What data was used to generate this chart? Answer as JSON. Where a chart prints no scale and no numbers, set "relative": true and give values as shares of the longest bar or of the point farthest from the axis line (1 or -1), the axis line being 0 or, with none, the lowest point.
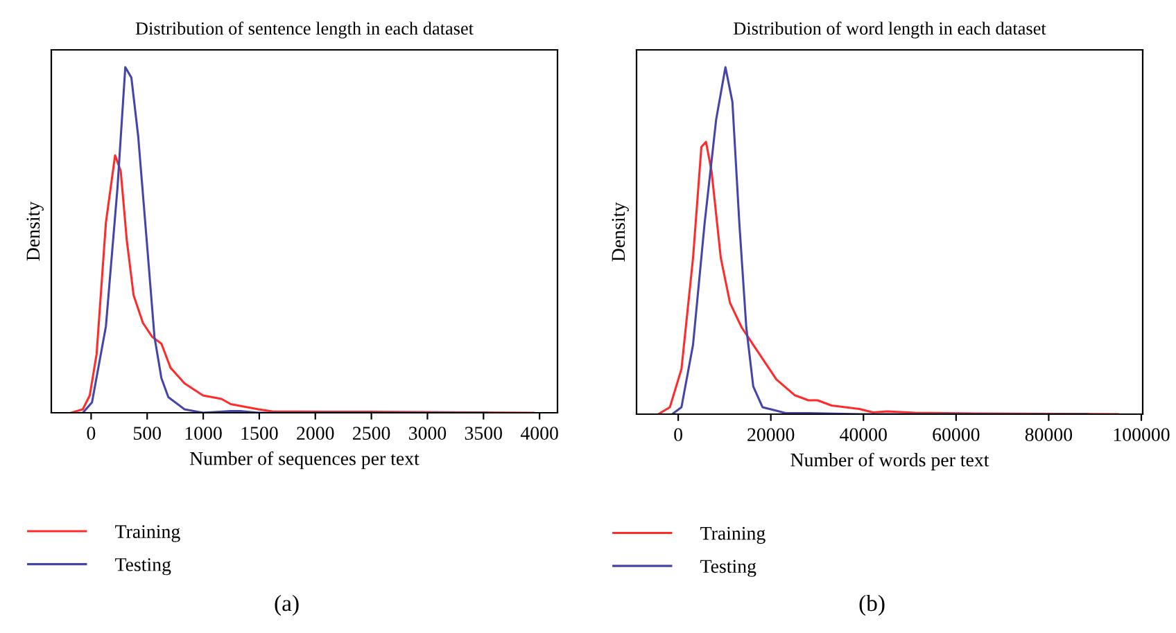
{
  "chart_data": [
    {
      "type": "line",
      "title": "Distribution of sentence length in each dataset",
      "xlabel": "Number of sequences per text",
      "ylabel": "Density",
      "relative": true,
      "xlim": [
        -355,
        4160
      ],
      "xticks": [
        0,
        500,
        1000,
        1500,
        2000,
        2500,
        3000,
        3500,
        4000
      ],
      "legend": "bottom left",
      "tick_labels": "x",
      "annotations": [
        "(a)"
      ],
      "series": [
        {
          "name": "Training",
          "color": "#ff2b2b",
          "x": [
            -177,
            -74,
            -12,
            49,
            132,
            214,
            264,
            318,
            379,
            462,
            544,
            627,
            709,
            833,
            998,
            1163,
            1245,
            1493,
            1616,
            2070,
            2482,
            3946
          ],
          "values": [
            0,
            0.01,
            0.05,
            0.17,
            0.55,
            0.745,
            0.7,
            0.5,
            0.34,
            0.26,
            0.22,
            0.2,
            0.13,
            0.085,
            0.05,
            0.04,
            0.025,
            0.01,
            0.004,
            0.003,
            0.003,
            0
          ]
        },
        {
          "name": "Testing",
          "color": "#4444aa",
          "x": [
            -74,
            8,
            132,
            235,
            305,
            359,
            420,
            503,
            565,
            627,
            689,
            833,
            915,
            998,
            1245,
            1328,
            1493,
            3534
          ],
          "values": [
            0,
            0.03,
            0.25,
            0.65,
            1.0,
            0.97,
            0.8,
            0.47,
            0.22,
            0.1,
            0.045,
            0.01,
            0.005,
            0,
            0.005,
            0.005,
            0,
            0
          ]
        }
      ]
    },
    {
      "type": "line",
      "title": "Distribution of word length in each dataset",
      "xlabel": "Number of words per text",
      "ylabel": "Density",
      "relative": true,
      "xlim": [
        -9000,
        100300
      ],
      "xticks": [
        0,
        20000,
        40000,
        60000,
        80000,
        100000
      ],
      "legend": "bottom left",
      "tick_labels": "x",
      "annotations": [
        "(b)"
      ],
      "series": [
        {
          "name": "Training",
          "color": "#ff2b2b",
          "x": [
            -4300,
            -1800,
            700,
            3200,
            5000,
            6000,
            7200,
            9200,
            11200,
            13700,
            16200,
            18700,
            21200,
            25100,
            28100,
            30100,
            33100,
            39100,
            42100,
            45100,
            51100,
            64100,
            95000
          ],
          "values": [
            0,
            0.02,
            0.13,
            0.45,
            0.77,
            0.785,
            0.7,
            0.45,
            0.32,
            0.25,
            0.2,
            0.15,
            0.1,
            0.055,
            0.04,
            0.04,
            0.025,
            0.015,
            0.005,
            0.008,
            0.004,
            0.002,
            0
          ]
        },
        {
          "name": "Testing",
          "color": "#4444aa",
          "x": [
            -1300,
            700,
            3200,
            5700,
            8200,
            10200,
            11700,
            13200,
            14700,
            16200,
            18200,
            21200,
            23200,
            28100,
            39100,
            88500
          ],
          "values": [
            0,
            0.02,
            0.2,
            0.55,
            0.85,
            1.0,
            0.9,
            0.55,
            0.25,
            0.08,
            0.02,
            0.01,
            0.003,
            0.003,
            0,
            0
          ]
        }
      ]
    }
  ]
}
